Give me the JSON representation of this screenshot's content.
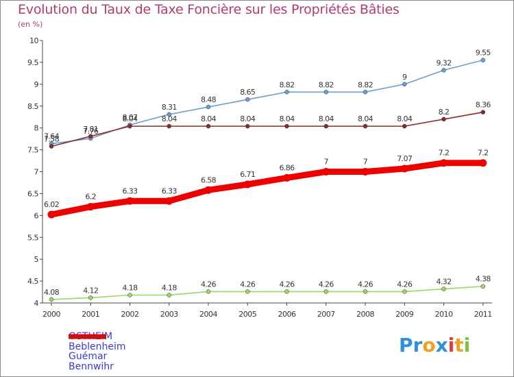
{
  "title": "Evolution du Taux de Taxe Foncière sur les Propriétés Bâties",
  "subtitle": "(en %)",
  "logo": {
    "text": "Proxiti",
    "letters": [
      "P",
      "r",
      "o",
      "x",
      "i",
      "t",
      "i"
    ],
    "colors": [
      "#2f8fd8",
      "#2f8fd8",
      "#f0a020",
      "#2f8fd8",
      "#e23b3b",
      "#f0a020",
      "#7cc242"
    ]
  },
  "chart_data": {
    "type": "line",
    "x": [
      "2000",
      "2001",
      "2002",
      "2003",
      "2004",
      "2005",
      "2006",
      "2007",
      "2008",
      "2009",
      "2010",
      "2011"
    ],
    "ylim": [
      4,
      10
    ],
    "yticks": [
      "4",
      "4.5",
      "5",
      "5.5",
      "6",
      "6.5",
      "7",
      "7.5",
      "8",
      "8.5",
      "9",
      "9.5",
      "10"
    ],
    "grid": false,
    "series": [
      {
        "name": "OSTHEIM",
        "color": "#ee0000",
        "values": [
          6.02,
          6.2,
          6.33,
          6.33,
          6.58,
          6.71,
          6.86,
          7,
          7,
          7.07,
          7.2,
          7.2
        ],
        "labels": [
          "6.02",
          "6.2",
          "6.33",
          "6.33",
          "6.58",
          "6.71",
          "6.86",
          "7",
          "7",
          "7.07",
          "7.2",
          "7.2"
        ]
      },
      {
        "name": "Beblenheim",
        "color": "#6a9fd0",
        "values": [
          7.64,
          7.76,
          8.07,
          8.31,
          8.48,
          8.65,
          8.82,
          8.82,
          8.82,
          9,
          9.32,
          9.55
        ],
        "labels": [
          "7.64",
          "7.76",
          "8.07",
          "8.31",
          "8.48",
          "8.65",
          "8.82",
          "8.82",
          "8.82",
          "9",
          "9.32",
          "9.55"
        ]
      },
      {
        "name": "Guémar",
        "color": "#9ed36a",
        "values": [
          4.08,
          4.12,
          4.18,
          4.18,
          4.26,
          4.26,
          4.26,
          4.26,
          4.26,
          4.26,
          4.32,
          4.38
        ],
        "labels": [
          "4.08",
          "4.12",
          "4.18",
          "4.18",
          "4.26",
          "4.26",
          "4.26",
          "4.26",
          "4.26",
          "4.26",
          "4.32",
          "4.38"
        ]
      },
      {
        "name": "Bennwihr",
        "color": "#8a2a2a",
        "values": [
          7.58,
          7.81,
          8.04,
          8.04,
          8.04,
          8.04,
          8.04,
          8.04,
          8.04,
          8.04,
          8.2,
          8.36
        ],
        "labels": [
          "7.58",
          "7.81",
          "8.04",
          "8.04",
          "8.04",
          "8.04",
          "8.04",
          "8.04",
          "8.04",
          "8.04",
          "8.2",
          "8.36"
        ]
      }
    ]
  }
}
